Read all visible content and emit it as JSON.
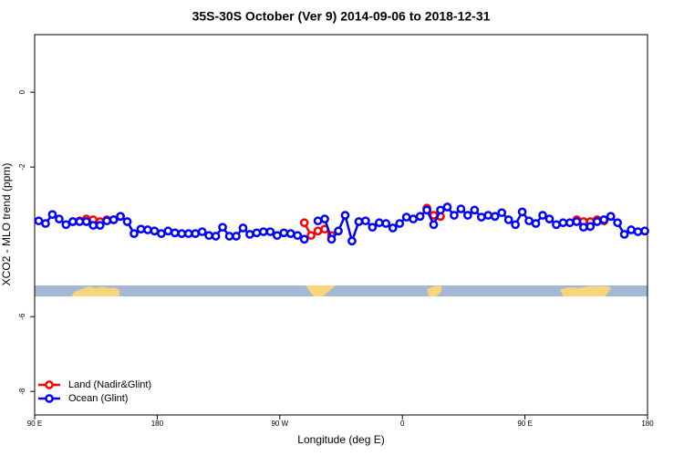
{
  "chart_data": {
    "type": "line",
    "title": "35S-30S October (Ver 9)   2014-09-06 to 2018-12-31",
    "x_label": "Longitude (deg E)",
    "y_label": "XCO2 - MLO trend (ppm)",
    "x": [
      93,
      98,
      103,
      108,
      113,
      118,
      123,
      128,
      133,
      138,
      143,
      148,
      153,
      158,
      163,
      168,
      173,
      178,
      183,
      188,
      193,
      198,
      203,
      208,
      213,
      218,
      223,
      228,
      233,
      238,
      243,
      248,
      253,
      258,
      263,
      268,
      273,
      278,
      283,
      288,
      293,
      298,
      303,
      308,
      313,
      318,
      323,
      328,
      333,
      338,
      343,
      348,
      353,
      358,
      363,
      368,
      373,
      378,
      383,
      388,
      393,
      398,
      403,
      408,
      413,
      418,
      423,
      428,
      433,
      438,
      443,
      448,
      453,
      458,
      463,
      468,
      473,
      478,
      483,
      488,
      493,
      498,
      503,
      508,
      513,
      518,
      523,
      528,
      533,
      538
    ],
    "series": [
      {
        "name": "Land (Nadir&Glint)",
        "color": "#ff0000",
        "values": [
          null,
          null,
          null,
          null,
          null,
          -3.46,
          -3.44,
          -3.39,
          -3.41,
          -3.46,
          -3.41,
          -3.41,
          -3.32,
          null,
          null,
          null,
          null,
          null,
          null,
          null,
          null,
          null,
          null,
          null,
          null,
          null,
          null,
          null,
          null,
          null,
          null,
          null,
          null,
          null,
          null,
          null,
          null,
          null,
          null,
          -3.49,
          -3.83,
          -3.71,
          -3.66,
          -3.83,
          null,
          null,
          null,
          null,
          null,
          null,
          null,
          null,
          null,
          null,
          null,
          null,
          null,
          -3.1,
          -3.29,
          -3.32,
          null,
          null,
          null,
          null,
          null,
          null,
          null,
          null,
          null,
          null,
          null,
          null,
          null,
          null,
          null,
          null,
          null,
          null,
          null,
          -3.41,
          -3.46,
          -3.46,
          -3.41,
          -3.44,
          -3.32,
          null,
          null,
          null,
          null,
          null
        ]
      },
      {
        "name": "Ocean (Glint)",
        "color": "#0000ff",
        "values": [
          -3.44,
          -3.51,
          -3.27,
          -3.39,
          -3.54,
          -3.46,
          -3.46,
          -3.46,
          -3.56,
          -3.56,
          -3.44,
          -3.41,
          -3.32,
          -3.46,
          -3.78,
          -3.66,
          -3.68,
          -3.71,
          -3.78,
          -3.71,
          -3.76,
          -3.78,
          -3.78,
          -3.78,
          -3.73,
          -3.83,
          -3.85,
          -3.61,
          -3.85,
          -3.85,
          -3.63,
          -3.8,
          -3.76,
          -3.73,
          -3.73,
          -3.83,
          -3.76,
          -3.78,
          -3.83,
          -3.93,
          null,
          -3.44,
          -3.39,
          -3.93,
          -3.71,
          -3.29,
          -3.98,
          -3.46,
          -3.44,
          -3.61,
          -3.49,
          -3.51,
          -3.63,
          -3.51,
          -3.34,
          -3.39,
          -3.32,
          -3.15,
          -3.54,
          -3.15,
          -3.07,
          -3.29,
          -3.12,
          -3.29,
          -3.15,
          -3.34,
          -3.29,
          -3.32,
          -3.22,
          -3.41,
          -3.54,
          -3.2,
          -3.44,
          -3.51,
          -3.29,
          -3.39,
          -3.54,
          -3.49,
          -3.49,
          -3.46,
          -3.61,
          -3.59,
          -3.46,
          -3.41,
          -3.32,
          -3.49,
          -3.8,
          -3.68,
          -3.73,
          -3.71
        ]
      }
    ],
    "xlim": [
      90,
      540
    ],
    "xticks": [
      {
        "value": 90,
        "label": "90 E"
      },
      180,
      {
        "value": 270,
        "label": "90 W"
      },
      {
        "value": 360,
        "label": "0"
      },
      {
        "value": 450,
        "label": "90 E"
      },
      {
        "value": 540,
        "label": "180"
      }
    ],
    "ylim": [
      -8.63,
      1.54
    ],
    "yticks": [
      0,
      -2,
      -6,
      -8
    ],
    "legend": "bottom-left"
  }
}
